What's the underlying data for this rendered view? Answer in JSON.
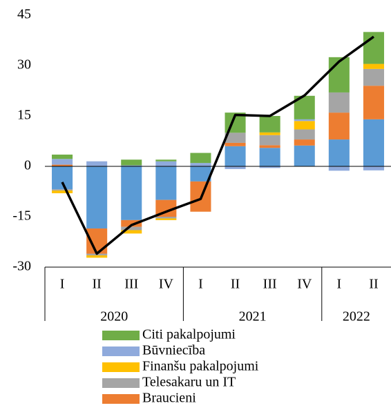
{
  "chart_data": {
    "type": "bar",
    "stacked": true,
    "category_groups": [
      {
        "name": "2020",
        "categories": [
          "I",
          "II",
          "III",
          "IV"
        ]
      },
      {
        "name": "2021",
        "categories": [
          "I",
          "II",
          "III",
          "IV"
        ]
      },
      {
        "name": "2022",
        "categories": [
          "I",
          "II"
        ]
      }
    ],
    "series": [
      {
        "color": "#5b9bd5",
        "values": [
          -6.8,
          -18.5,
          -16,
          -10,
          -4.5,
          6,
          5.5,
          6.2,
          8,
          14
        ]
      },
      {
        "name": "Braucieni",
        "color": "#ed7d31",
        "values": [
          0.5,
          -7.5,
          -2,
          -5,
          -9,
          1,
          0.8,
          1.8,
          8,
          10
        ]
      },
      {
        "name": "Telesakaru un IT",
        "color": "#a5a5a5",
        "values": [
          -0.4,
          -0.5,
          -1,
          -0.5,
          0,
          3,
          3,
          3,
          6,
          5
        ]
      },
      {
        "name": "Finanšu pakalpojumi",
        "color": "#ffc000",
        "values": [
          -0.8,
          -0.7,
          -1,
          -0.5,
          0,
          0,
          0.8,
          2.5,
          0,
          1.5
        ]
      },
      {
        "name": "Būvniecība",
        "color": "#8faadc",
        "values": [
          1.7,
          1.5,
          0.3,
          1.5,
          1,
          -0.8,
          -0.5,
          0.5,
          -1.3,
          -1.2
        ]
      },
      {
        "name": "Citi pakalpojumi",
        "color": "#70ad47",
        "values": [
          1.3,
          0,
          1.7,
          0.5,
          3,
          6,
          4.9,
          7,
          10.5,
          9.5
        ]
      }
    ],
    "line": {
      "color": "#000000",
      "values": [
        -4.7,
        -26,
        -17.5,
        -13.5,
        -9.7,
        15.3,
        15,
        21.1,
        31.2,
        38.6
      ]
    },
    "ylim": [
      -30,
      45
    ],
    "yticks": [
      -30,
      -15,
      0,
      15,
      30,
      45
    ]
  }
}
